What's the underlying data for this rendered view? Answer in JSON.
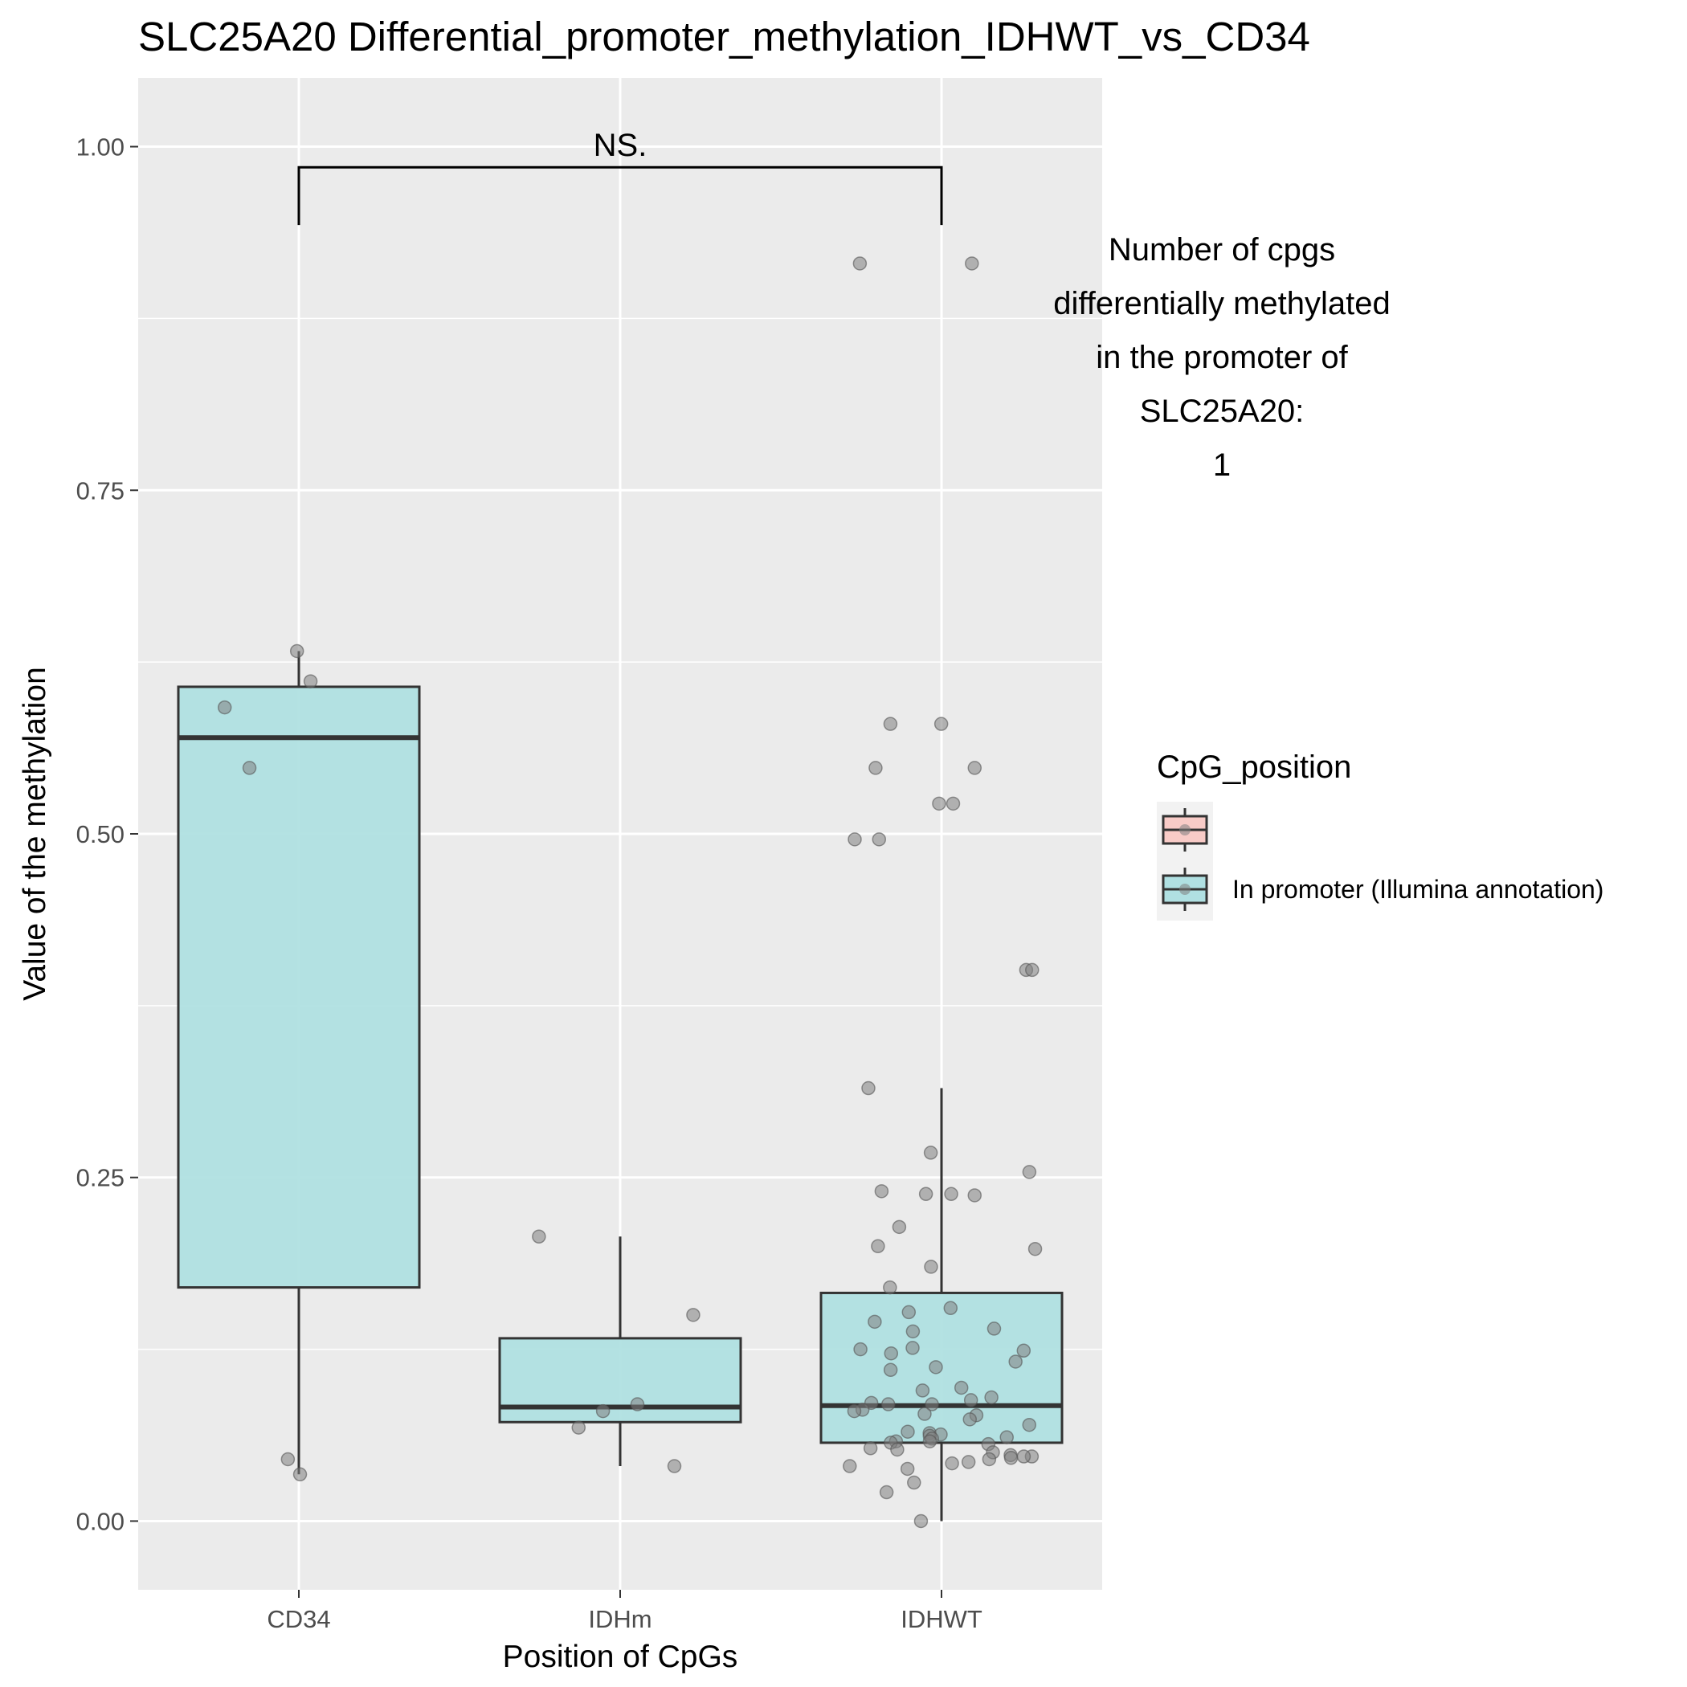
{
  "chart_data": {
    "type": "boxplot",
    "title": "SLC25A20 Differential_promoter_methylation_IDHWT_vs_CD34",
    "xlabel": "Position of CpGs",
    "ylabel": "Value of the methylation",
    "categories": [
      "CD34",
      "IDHm",
      "IDHWT"
    ],
    "ylim": [
      -0.05,
      1.05
    ],
    "yticks": [
      0.0,
      0.25,
      0.5,
      0.75,
      1.0
    ],
    "ytick_labels": [
      "0.00",
      "0.25",
      "0.50",
      "0.75",
      "1.00"
    ],
    "grid": true,
    "boxes": [
      {
        "category": "CD34",
        "whisker_low": 0.034,
        "q1": 0.17,
        "median": 0.57,
        "q3": 0.607,
        "whisker_high": 0.633
      },
      {
        "category": "IDHm",
        "whisker_low": 0.04,
        "q1": 0.072,
        "median": 0.083,
        "q3": 0.133,
        "whisker_high": 0.207
      },
      {
        "category": "IDHWT",
        "whisker_low": 0.0,
        "q1": 0.057,
        "median": 0.084,
        "q3": 0.166,
        "whisker_high": 0.315
      }
    ],
    "points": [
      {
        "category": "CD34",
        "values": [
          0.633,
          0.611,
          0.592,
          0.548,
          0.045,
          0.034
        ]
      },
      {
        "category": "IDHm",
        "values": [
          0.207,
          0.15,
          0.085,
          0.08,
          0.068,
          0.04
        ]
      },
      {
        "category": "IDHWT",
        "values": [
          0.915,
          0.915,
          0.58,
          0.58,
          0.548,
          0.548,
          0.522,
          0.522,
          0.496,
          0.496,
          0.401,
          0.401,
          0.315,
          0.268,
          0.254,
          0.24,
          0.238,
          0.238,
          0.237,
          0.214,
          0.2,
          0.198,
          0.185,
          0.17,
          0.155,
          0.152,
          0.145,
          0.14,
          0.138,
          0.126,
          0.125,
          0.124,
          0.122,
          0.116,
          0.112,
          0.11,
          0.097,
          0.095,
          0.09,
          0.088,
          0.086,
          0.085,
          0.085,
          0.081,
          0.08,
          0.078,
          0.077,
          0.074,
          0.07,
          0.065,
          0.064,
          0.063,
          0.062,
          0.061,
          0.06,
          0.058,
          0.058,
          0.057,
          0.056,
          0.053,
          0.052,
          0.05,
          0.048,
          0.047,
          0.047,
          0.046,
          0.045,
          0.043,
          0.042,
          0.04,
          0.038,
          0.028,
          0.021,
          0.0
        ]
      }
    ],
    "significance": {
      "from": "CD34",
      "to": "IDHWT",
      "label": "NS."
    },
    "annotation": [
      "Number of cpgs",
      "differentially methylated",
      "in the promoter of",
      "SLC25A20:",
      "1"
    ],
    "legend": {
      "title": "CpG_position",
      "placement": "right",
      "entries": [
        {
          "label": "",
          "color": "#F8CBC7"
        },
        {
          "label": "In promoter (Illumina annotation)",
          "color": "#B0E0E2"
        }
      ]
    },
    "colors": {
      "panel": "#EBEBEB",
      "grid": "#FFFFFF",
      "box_fill": "#B0E0E2",
      "box_stroke": "#333333",
      "point": "#7F7F7F"
    }
  }
}
